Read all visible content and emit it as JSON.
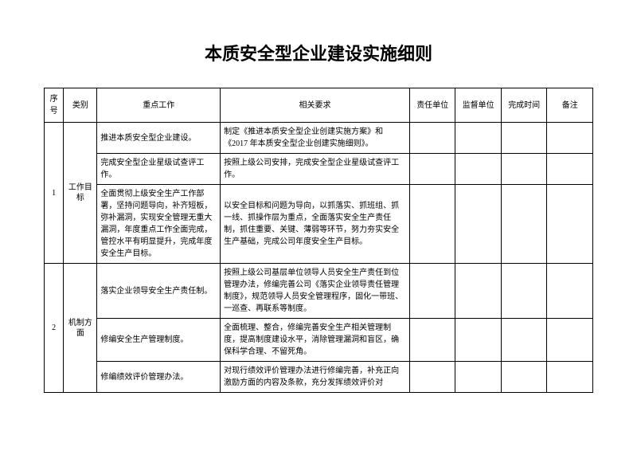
{
  "title": "本质安全型企业建设实施细则",
  "headers": {
    "seq": "序号",
    "category": "类别",
    "keywork": "重点工作",
    "requirement": "相关要求",
    "responsible": "责任单位",
    "supervisor": "监督单位",
    "completion": "完成时间",
    "remark": "备注"
  },
  "rows": [
    {
      "seq": "1",
      "category": "工作目标",
      "items": [
        {
          "keywork": "推进本质安全型企业建设。",
          "requirement": "制定《推进本质安全型企业创建实施方案》和《2017 年本质安全型企业创建实施细则》。"
        },
        {
          "keywork": "完成安全型企业星级试查评工作。",
          "requirement": "按照上级公司安排，完成安全型企业星级试查评工作。"
        },
        {
          "keywork": "全面贯彻上级安全生产工作部署，坚持问题导向，补齐短板，弥补漏洞，实现安全管理无重大漏洞，年度重点工作全面完成，管控水平有明显提升，完成年度安全生产目标。",
          "requirement": "以安全目标和问题为导向，以抓落实、抓班组、抓一线、抓操作层为重点，全面落实安全生产责任制，抓住重要、关键、薄弱等环节，努力夯实安全生产基础，完成公司年度安全生产目标。"
        }
      ]
    },
    {
      "seq": "2",
      "category": "机制方面",
      "items": [
        {
          "keywork": "落实企业领导安全生产责任制。",
          "requirement": "按照上级公司基层单位领导人员安全生产责任到位管理办法，修编完善公司《落实企业领导责任管理制度》，规范领导人员安全管理程序，固化一带班、一巡查、再联系等制度。"
        },
        {
          "keywork": "修编安全生产管理制度。",
          "requirement": "全面梳理、整合，修编完善安全生产相关管理制度，提高制度建设水平，消除管理漏洞和盲区，确保科学合理、不留死角。"
        },
        {
          "keywork": "修编绩效评价管理办法。",
          "requirement": "对现行绩效评价管理办法进行修编完善，补充正向激励方面的内容及条款，充分发挥绩效评价对"
        }
      ]
    }
  ]
}
